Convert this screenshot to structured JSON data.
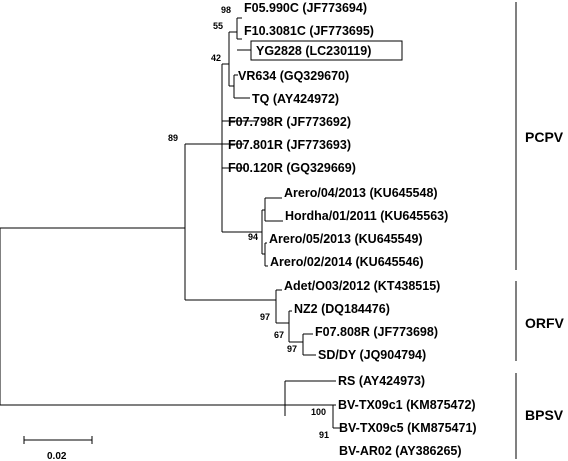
{
  "leaves": [
    "F05.990C (JF773694)",
    "F10.3081C (JF773695)",
    "YG2828 (LC230119)",
    "VR634 (GQ329670)",
    "TQ (AY424972)",
    "F07.798R (JF773692)",
    "F07.801R (JF773693)",
    "F00.120R (GQ329669)",
    "Arero/04/2013 (KU645548)",
    "Hordha/01/2011 (KU645563)",
    "Arero/05/2013 (KU645549)",
    "Arero/02/2014 (KU645546)",
    "Adet/O03/2012 (KT438515)",
    "NZ2 (DQ184476)",
    "F07.808R (JF773698)",
    "SD/DY (JQ904794)",
    "RS (AY424973)",
    "BV-TX09c1 (KM875472)",
    "BV-TX09c5 (KM875471)",
    "BV-AR02 (AY386265)"
  ],
  "bootstrap": [
    "98",
    "55",
    "42",
    "89",
    "94",
    "97",
    "67",
    "97",
    "100",
    "91"
  ],
  "groups": [
    "PCPV",
    "ORFV",
    "BPSV"
  ],
  "highlighted_leaf": "YG2828 (LC230119)",
  "scale": "0.02"
}
